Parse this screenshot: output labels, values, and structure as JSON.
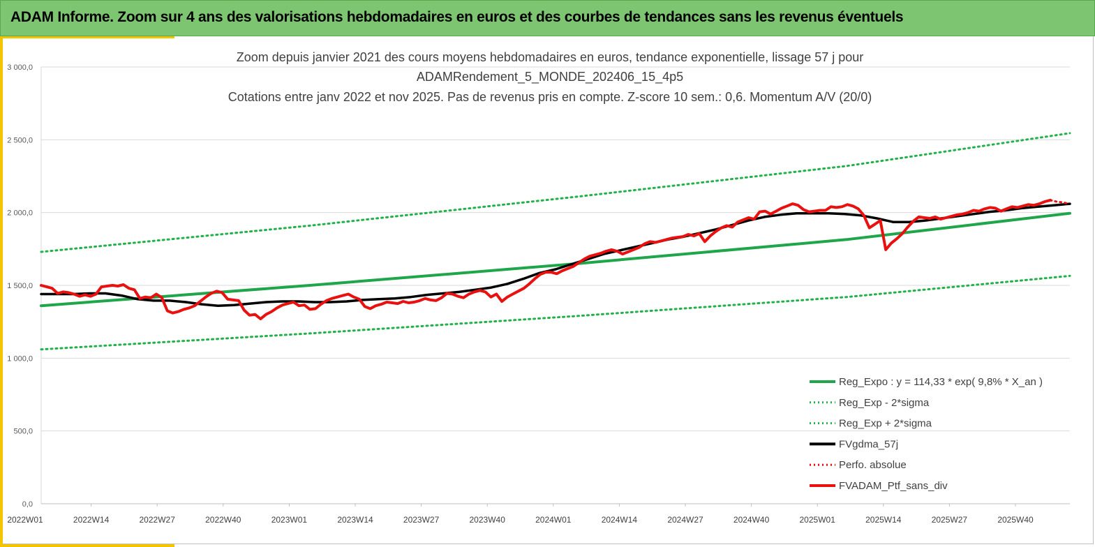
{
  "header": {
    "title": "ADAM Informe. Zoom sur 4 ans des valorisations hebdomadaires en euros et des courbes de tendances sans les revenus éventuels"
  },
  "colors": {
    "banner": "#7dc571",
    "accent_yellow": "#f5c400",
    "trend_green": "#1fa64a",
    "band_green": "#22b04b",
    "ma_black": "#000000",
    "perf_red": "#e8110f"
  },
  "chart_data": {
    "type": "line",
    "title": [
      "Zoom depuis janvier 2021 des cours moyens hebdomadaires  en euros, tendance exponentielle, lissage 57 j pour",
      "ADAMRendement_5_MONDE_202406_15_4p5",
      "Cotations  entre janv 2022 et nov 2025. Pas de revenus pris en compte. Z-score 10 sem.: 0,6. Momentum A/V (20/0)"
    ],
    "xlabel": "",
    "ylabel": "",
    "ylim": [
      0,
      3000
    ],
    "yticks": [
      "0,0",
      "500,0",
      "1 000,0",
      "1 500,0",
      "2 000,0",
      "2 500,0",
      "3 000,0"
    ],
    "ytick_values": [
      0,
      500,
      1000,
      1500,
      2000,
      2500,
      3000
    ],
    "xticks": [
      "2022W01",
      "2022W14",
      "2022W27",
      "2022W40",
      "2023W01",
      "2023W14",
      "2023W27",
      "2023W40",
      "2024W01",
      "2024W14",
      "2024W27",
      "2024W40",
      "2025W01",
      "2025W14",
      "2025W27",
      "2025W40"
    ],
    "grid": true,
    "legend_position": "bottom-right",
    "series": [
      {
        "name": "Reg_Expo : y = 114,33 * exp( 9,8% *  X_an )",
        "style": "solid-thick",
        "color": "#1fa64a",
        "points": [
          [
            0,
            1360
          ],
          [
            65,
            1500
          ],
          [
            130,
            1650
          ],
          [
            195,
            1815
          ],
          [
            249,
            1995
          ]
        ]
      },
      {
        "name": "Reg_Exp - 2*sigma",
        "style": "dotted",
        "color": "#22b04b",
        "points": [
          [
            0,
            1060
          ],
          [
            65,
            1170
          ],
          [
            130,
            1290
          ],
          [
            195,
            1420
          ],
          [
            249,
            1565
          ]
        ]
      },
      {
        "name": "Reg_Exp + 2*sigma",
        "style": "dotted",
        "color": "#22b04b",
        "points": [
          [
            0,
            1730
          ],
          [
            65,
            1910
          ],
          [
            130,
            2110
          ],
          [
            195,
            2320
          ],
          [
            249,
            2545
          ]
        ]
      },
      {
        "name": "FVgdma_57j",
        "style": "solid",
        "color": "#000000",
        "points": [
          [
            0,
            1440
          ],
          [
            5,
            1440
          ],
          [
            10,
            1440
          ],
          [
            15,
            1445
          ],
          [
            20,
            1445
          ],
          [
            25,
            1430
          ],
          [
            30,
            1405
          ],
          [
            35,
            1395
          ],
          [
            40,
            1395
          ],
          [
            45,
            1385
          ],
          [
            50,
            1370
          ],
          [
            55,
            1360
          ],
          [
            60,
            1365
          ],
          [
            65,
            1375
          ],
          [
            70,
            1385
          ],
          [
            75,
            1390
          ],
          [
            80,
            1390
          ],
          [
            85,
            1385
          ],
          [
            90,
            1385
          ],
          [
            95,
            1390
          ],
          [
            100,
            1400
          ],
          [
            105,
            1405
          ],
          [
            110,
            1410
          ],
          [
            115,
            1420
          ],
          [
            120,
            1435
          ],
          [
            125,
            1445
          ],
          [
            130,
            1455
          ],
          [
            135,
            1470
          ],
          [
            140,
            1485
          ],
          [
            145,
            1510
          ],
          [
            150,
            1545
          ],
          [
            155,
            1585
          ],
          [
            160,
            1610
          ],
          [
            165,
            1645
          ],
          [
            170,
            1680
          ],
          [
            175,
            1715
          ],
          [
            180,
            1740
          ],
          [
            185,
            1765
          ],
          [
            190,
            1790
          ],
          [
            195,
            1815
          ],
          [
            200,
            1835
          ],
          [
            205,
            1860
          ],
          [
            210,
            1885
          ],
          [
            215,
            1915
          ],
          [
            220,
            1945
          ],
          [
            225,
            1970
          ],
          [
            230,
            1985
          ],
          [
            235,
            1995
          ],
          [
            240,
            1995
          ],
          [
            245,
            1995
          ],
          [
            250,
            1990
          ],
          [
            255,
            1980
          ],
          [
            260,
            1960
          ],
          [
            265,
            1935
          ],
          [
            270,
            1935
          ],
          [
            275,
            1945
          ],
          [
            280,
            1960
          ],
          [
            285,
            1975
          ],
          [
            290,
            1990
          ],
          [
            295,
            2005
          ],
          [
            300,
            2015
          ],
          [
            305,
            2030
          ],
          [
            310,
            2040
          ],
          [
            315,
            2050
          ],
          [
            320,
            2060
          ]
        ]
      },
      {
        "name": "Perfo. absolue",
        "style": "dotted",
        "color": "#e8110f",
        "points": [
          [
            246,
            2085
          ],
          [
            247,
            2075
          ],
          [
            248,
            2070
          ],
          [
            249,
            2060
          ]
        ]
      },
      {
        "name": "FVADAM_Ptf_sans_div",
        "style": "solid-thick",
        "color": "#e8110f",
        "points": [
          [
            0,
            1500
          ],
          [
            1,
            1490
          ],
          [
            2,
            1480
          ],
          [
            3,
            1445
          ],
          [
            4,
            1455
          ],
          [
            5,
            1450
          ],
          [
            6,
            1440
          ],
          [
            7,
            1425
          ],
          [
            8,
            1435
          ],
          [
            9,
            1425
          ],
          [
            10,
            1440
          ],
          [
            11,
            1490
          ],
          [
            12,
            1495
          ],
          [
            13,
            1500
          ],
          [
            14,
            1495
          ],
          [
            15,
            1505
          ],
          [
            16,
            1480
          ],
          [
            17,
            1470
          ],
          [
            18,
            1410
          ],
          [
            19,
            1420
          ],
          [
            20,
            1415
          ],
          [
            21,
            1440
          ],
          [
            22,
            1415
          ],
          [
            23,
            1325
          ],
          [
            24,
            1310
          ],
          [
            25,
            1320
          ],
          [
            26,
            1335
          ],
          [
            27,
            1345
          ],
          [
            28,
            1360
          ],
          [
            29,
            1390
          ],
          [
            30,
            1420
          ],
          [
            31,
            1445
          ],
          [
            32,
            1460
          ],
          [
            33,
            1450
          ],
          [
            34,
            1405
          ],
          [
            35,
            1400
          ],
          [
            36,
            1395
          ],
          [
            37,
            1330
          ],
          [
            38,
            1295
          ],
          [
            39,
            1300
          ],
          [
            40,
            1270
          ],
          [
            41,
            1300
          ],
          [
            42,
            1320
          ],
          [
            43,
            1345
          ],
          [
            44,
            1365
          ],
          [
            45,
            1375
          ],
          [
            46,
            1385
          ],
          [
            47,
            1360
          ],
          [
            48,
            1365
          ],
          [
            49,
            1335
          ],
          [
            50,
            1340
          ],
          [
            51,
            1370
          ],
          [
            52,
            1395
          ],
          [
            53,
            1410
          ],
          [
            54,
            1420
          ],
          [
            55,
            1430
          ],
          [
            56,
            1440
          ],
          [
            57,
            1420
          ],
          [
            58,
            1405
          ],
          [
            59,
            1355
          ],
          [
            60,
            1340
          ],
          [
            61,
            1360
          ],
          [
            62,
            1370
          ],
          [
            63,
            1385
          ],
          [
            64,
            1380
          ],
          [
            65,
            1375
          ],
          [
            66,
            1390
          ],
          [
            67,
            1380
          ],
          [
            68,
            1385
          ],
          [
            69,
            1395
          ],
          [
            70,
            1410
          ],
          [
            71,
            1400
          ],
          [
            72,
            1395
          ],
          [
            73,
            1415
          ],
          [
            74,
            1445
          ],
          [
            75,
            1440
          ],
          [
            76,
            1425
          ],
          [
            77,
            1415
          ],
          [
            78,
            1440
          ],
          [
            79,
            1455
          ],
          [
            80,
            1465
          ],
          [
            81,
            1455
          ],
          [
            82,
            1420
          ],
          [
            83,
            1440
          ],
          [
            84,
            1390
          ],
          [
            85,
            1420
          ],
          [
            86,
            1440
          ],
          [
            87,
            1460
          ],
          [
            88,
            1480
          ],
          [
            89,
            1510
          ],
          [
            90,
            1545
          ],
          [
            91,
            1575
          ],
          [
            92,
            1590
          ],
          [
            93,
            1590
          ],
          [
            94,
            1580
          ],
          [
            95,
            1600
          ],
          [
            96,
            1615
          ],
          [
            97,
            1630
          ],
          [
            98,
            1655
          ],
          [
            99,
            1680
          ],
          [
            100,
            1700
          ],
          [
            101,
            1710
          ],
          [
            102,
            1720
          ],
          [
            103,
            1735
          ],
          [
            104,
            1745
          ],
          [
            105,
            1735
          ],
          [
            106,
            1715
          ],
          [
            107,
            1730
          ],
          [
            108,
            1745
          ],
          [
            109,
            1760
          ],
          [
            110,
            1785
          ],
          [
            111,
            1800
          ],
          [
            112,
            1795
          ],
          [
            113,
            1805
          ],
          [
            114,
            1815
          ],
          [
            115,
            1825
          ],
          [
            116,
            1830
          ],
          [
            117,
            1835
          ],
          [
            118,
            1850
          ],
          [
            119,
            1840
          ],
          [
            120,
            1855
          ],
          [
            121,
            1800
          ],
          [
            122,
            1840
          ],
          [
            123,
            1870
          ],
          [
            124,
            1895
          ],
          [
            125,
            1910
          ],
          [
            126,
            1900
          ],
          [
            127,
            1935
          ],
          [
            128,
            1950
          ],
          [
            129,
            1965
          ],
          [
            130,
            1955
          ],
          [
            131,
            2005
          ],
          [
            132,
            2010
          ],
          [
            133,
            1990
          ],
          [
            134,
            2010
          ],
          [
            135,
            2030
          ],
          [
            136,
            2045
          ],
          [
            137,
            2060
          ],
          [
            138,
            2050
          ],
          [
            139,
            2020
          ],
          [
            140,
            2005
          ],
          [
            141,
            2010
          ],
          [
            142,
            2015
          ],
          [
            143,
            2015
          ],
          [
            144,
            2040
          ],
          [
            145,
            2035
          ],
          [
            146,
            2040
          ],
          [
            147,
            2055
          ],
          [
            148,
            2045
          ],
          [
            149,
            2025
          ],
          [
            150,
            1980
          ],
          [
            151,
            1895
          ],
          [
            152,
            1920
          ],
          [
            153,
            1945
          ],
          [
            154,
            1745
          ],
          [
            155,
            1790
          ],
          [
            156,
            1820
          ],
          [
            157,
            1855
          ],
          [
            158,
            1900
          ],
          [
            159,
            1940
          ],
          [
            160,
            1970
          ],
          [
            161,
            1965
          ],
          [
            162,
            1960
          ],
          [
            163,
            1970
          ],
          [
            164,
            1955
          ],
          [
            165,
            1965
          ],
          [
            166,
            1975
          ],
          [
            167,
            1985
          ],
          [
            168,
            1990
          ],
          [
            169,
            2000
          ],
          [
            170,
            2015
          ],
          [
            171,
            2010
          ],
          [
            172,
            2025
          ],
          [
            173,
            2035
          ],
          [
            174,
            2030
          ],
          [
            175,
            2010
          ],
          [
            176,
            2025
          ],
          [
            177,
            2040
          ],
          [
            178,
            2035
          ],
          [
            179,
            2045
          ],
          [
            180,
            2055
          ],
          [
            181,
            2050
          ],
          [
            182,
            2060
          ],
          [
            183,
            2075
          ],
          [
            184,
            2085
          ]
        ]
      }
    ]
  }
}
